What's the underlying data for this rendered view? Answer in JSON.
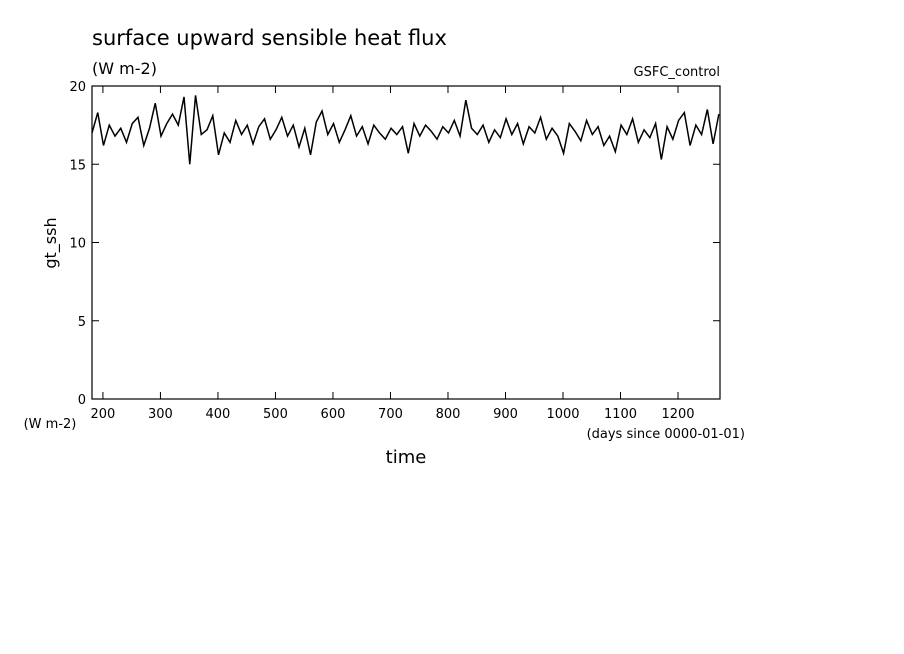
{
  "chart_data": {
    "type": "line",
    "title": "surface upward sensible heat flux",
    "subtitle": "(W m-2)",
    "annotation": "GSFC_control",
    "ylabel": "gt_ssh",
    "yunits": "(W m-2)",
    "xunits": "(days since 0000-01-01)",
    "xlabel": "time",
    "x": [
      181,
      191,
      201,
      211,
      221,
      231,
      241,
      251,
      261,
      271,
      281,
      291,
      301,
      311,
      321,
      331,
      341,
      351,
      361,
      371,
      381,
      391,
      401,
      411,
      421,
      431,
      441,
      451,
      461,
      471,
      481,
      491,
      501,
      511,
      521,
      531,
      541,
      551,
      561,
      571,
      581,
      591,
      601,
      611,
      621,
      631,
      641,
      651,
      661,
      671,
      681,
      691,
      701,
      711,
      721,
      731,
      741,
      751,
      761,
      771,
      781,
      791,
      801,
      811,
      821,
      831,
      841,
      851,
      861,
      871,
      881,
      891,
      901,
      911,
      921,
      931,
      941,
      951,
      961,
      971,
      981,
      991,
      1001,
      1011,
      1021,
      1031,
      1041,
      1051,
      1061,
      1071,
      1081,
      1091,
      1101,
      1111,
      1121,
      1131,
      1141,
      1151,
      1161,
      1171,
      1181,
      1191,
      1201,
      1211,
      1221,
      1231,
      1241,
      1251,
      1261,
      1271
    ],
    "series": [
      {
        "color": "#000000",
        "values": [
          17.0,
          18.3,
          16.2,
          17.5,
          16.8,
          17.3,
          16.4,
          17.6,
          18.0,
          16.2,
          17.3,
          18.9,
          16.8,
          17.6,
          18.2,
          17.5,
          19.3,
          15.0,
          19.4,
          16.9,
          17.2,
          18.1,
          15.6,
          17.0,
          16.4,
          17.8,
          16.9,
          17.5,
          16.3,
          17.4,
          17.9,
          16.6,
          17.2,
          18.0,
          16.8,
          17.5,
          16.1,
          17.3,
          15.6,
          17.7,
          18.4,
          16.9,
          17.6,
          16.4,
          17.2,
          18.1,
          16.8,
          17.4,
          16.3,
          17.5,
          17.0,
          16.6,
          17.3,
          16.9,
          17.4,
          15.7,
          17.6,
          16.8,
          17.5,
          17.1,
          16.6,
          17.4,
          17.0,
          17.8,
          16.8,
          19.1,
          17.3,
          16.9,
          17.5,
          16.4,
          17.2,
          16.7,
          17.9,
          16.9,
          17.6,
          16.3,
          17.4,
          17.0,
          18.0,
          16.6,
          17.3,
          16.8,
          15.7,
          17.6,
          17.1,
          16.5,
          17.8,
          16.9,
          17.4,
          16.2,
          16.8,
          15.8,
          17.5,
          16.9,
          17.9,
          16.4,
          17.2,
          16.7,
          17.6,
          15.3,
          17.4,
          16.6,
          17.8,
          18.3,
          16.2,
          17.5,
          16.9,
          18.5,
          16.3,
          18.2
        ]
      }
    ],
    "xlim": [
      181,
      1273
    ],
    "xticks": [
      200,
      300,
      400,
      500,
      600,
      700,
      800,
      900,
      1000,
      1100,
      1200
    ],
    "ylim": [
      0,
      20
    ],
    "yticks": [
      0,
      5,
      10,
      15,
      20
    ]
  }
}
